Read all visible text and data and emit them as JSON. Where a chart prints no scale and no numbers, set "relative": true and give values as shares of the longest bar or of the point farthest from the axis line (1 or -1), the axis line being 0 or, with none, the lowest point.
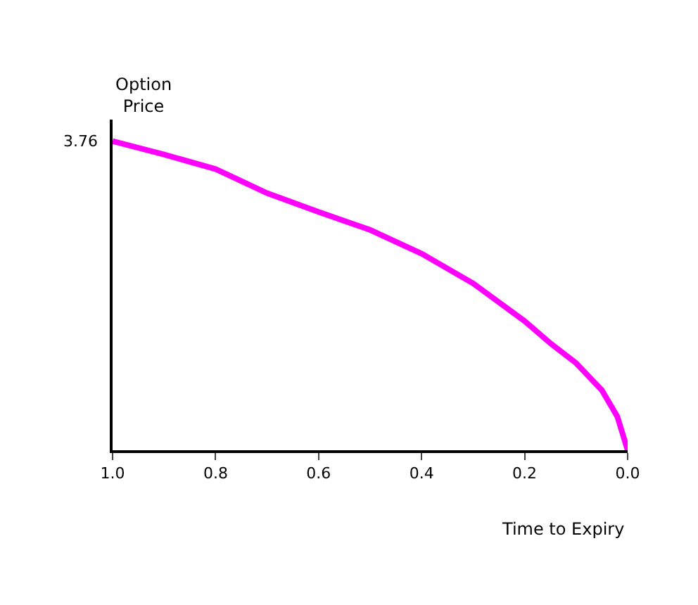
{
  "chart_data": {
    "type": "line",
    "xlabel": "Time to Expiry",
    "ylabel": "Option Price",
    "relative": true,
    "x": [
      1.0,
      0.9,
      0.8,
      0.7,
      0.6,
      0.5,
      0.4,
      0.3,
      0.2,
      0.15,
      0.1,
      0.05,
      0.02,
      0.0
    ],
    "series": [
      {
        "color": "#ff00ff",
        "values": [
          1.0,
          0.957,
          0.91,
          0.832,
          0.771,
          0.713,
          0.636,
          0.54,
          0.418,
          0.346,
          0.282,
          0.194,
          0.109,
          0.0
        ]
      }
    ],
    "annotations": [
      {
        "text": "3.76",
        "x": 1.0,
        "y": 1.0
      }
    ],
    "xlim": [
      1.0,
      0.0
    ],
    "xticks": [
      {
        "value": 1.0,
        "label": "1.0"
      },
      0.8,
      0.6,
      0.4,
      0.2,
      {
        "value": 0.0,
        "label": "0.0"
      }
    ],
    "marker": "none",
    "line_style": "solid"
  }
}
